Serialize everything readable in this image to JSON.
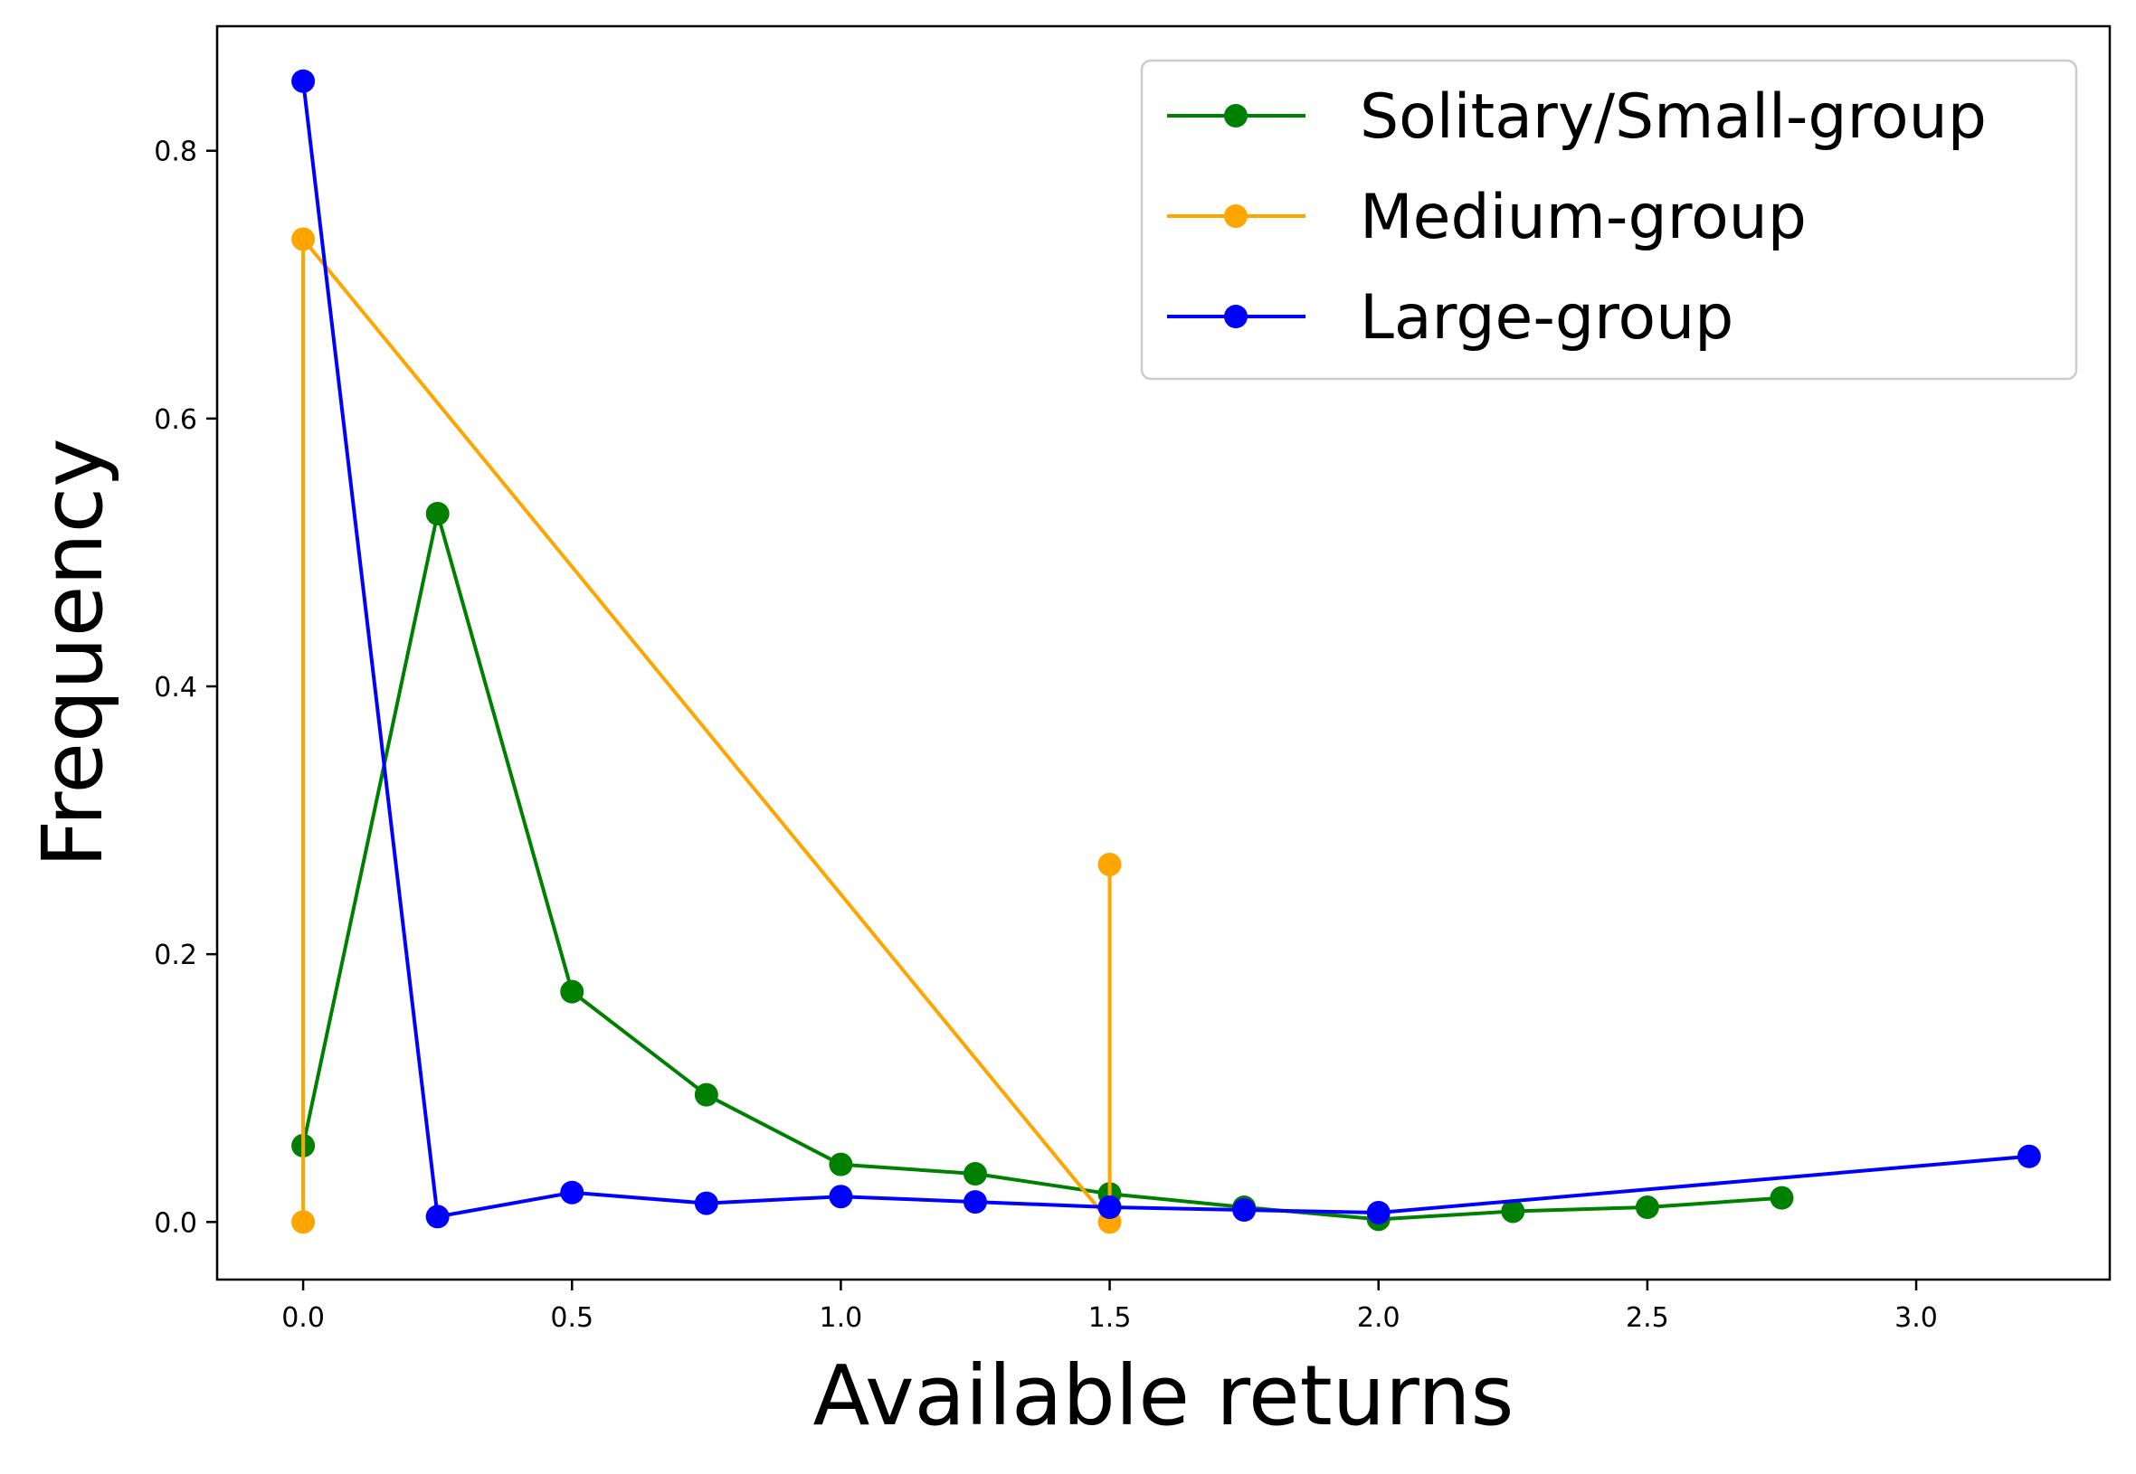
{
  "chart_data": {
    "type": "line",
    "title": "",
    "xlabel": "Available returns",
    "ylabel": "Frequency",
    "xlim": [
      -0.16,
      3.36
    ],
    "ylim": [
      -0.043,
      0.893
    ],
    "xticks": [
      0.0,
      0.5,
      1.0,
      1.5,
      2.0,
      2.5,
      3.0
    ],
    "xtick_labels": [
      "0.0",
      "0.5",
      "1.0",
      "1.5",
      "2.0",
      "2.5",
      "3.0"
    ],
    "yticks": [
      0.0,
      0.2,
      0.4,
      0.6,
      0.8
    ],
    "ytick_labels": [
      "0.0",
      "0.2",
      "0.4",
      "0.6",
      "0.8"
    ],
    "grid": false,
    "legend_position": "top-right",
    "series": [
      {
        "name": "Solitary/Small-group",
        "color": "#008000",
        "x": [
          0.0,
          0.25,
          0.5,
          0.75,
          1.0,
          1.25,
          1.5,
          1.75,
          2.0,
          2.25,
          2.5,
          2.75
        ],
        "y": [
          0.057,
          0.529,
          0.172,
          0.095,
          0.043,
          0.036,
          0.021,
          0.011,
          0.002,
          0.008,
          0.011,
          0.018
        ]
      },
      {
        "name": "Medium-group",
        "color": "#FFA500",
        "x": [
          0.0,
          0.0,
          1.5,
          1.5
        ],
        "y": [
          0.0,
          0.734,
          0.0,
          0.267
        ]
      },
      {
        "name": "Large-group",
        "color": "#0000FF",
        "x": [
          0.0,
          0.25,
          0.5,
          0.75,
          1.0,
          1.25,
          1.5,
          1.75,
          2.0,
          3.21
        ],
        "y": [
          0.852,
          0.004,
          0.022,
          0.014,
          0.019,
          0.015,
          0.011,
          0.009,
          0.007,
          0.049
        ]
      }
    ]
  }
}
